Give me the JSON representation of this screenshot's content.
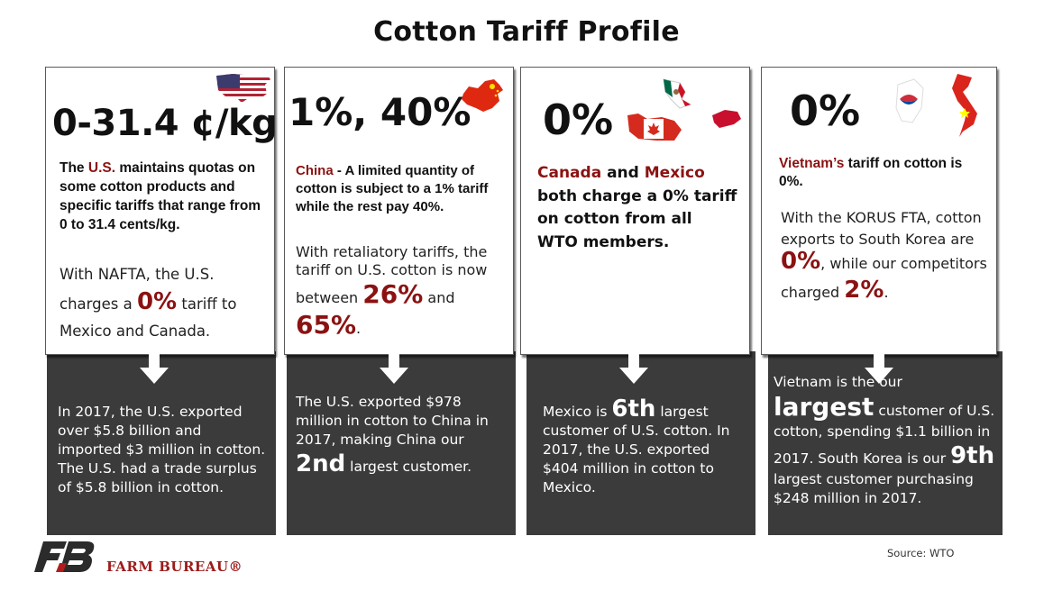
{
  "title": "Cotton Tariff Profile",
  "accent_red": "#8b1212",
  "panel_dark": "#3b3b3b",
  "us": {
    "tariff": "0-31.4 ¢/kg",
    "lead_red": "U.S.",
    "lead_a": "The ",
    "lead_b": " maintains quotas on some cotton products and specific tariffs that range from 0 to 31.4 cents/kg.",
    "nafta_a": "With NAFTA, the U.S. charges a ",
    "nafta_pct": "0%",
    "nafta_b": " tariff to Mexico and Canada.",
    "dark_text": "In 2017, the U.S. exported over $5.8 billion and imported $3 million in cotton. The U.S. had a trade surplus of $5.8 billion in cotton.",
    "flag_icon": "us-flag-map-icon"
  },
  "china": {
    "tariff": "1%, 40%",
    "lead_red": "China",
    "lead_b": " - A limited quantity of cotton is subject to a 1% tariff while the rest pay 40%.",
    "ret_a": "With retaliatory tariffs, the tariff on U.S. cotton is now between ",
    "ret_pct1": "26%",
    "ret_mid": " and ",
    "ret_pct2": "65%",
    "ret_end": ".",
    "dark_a": "The U.S. exported $978 million in cotton to China in 2017, making China our ",
    "dark_big": "2nd",
    "dark_b": " largest customer.",
    "flag_icon": "china-flag-map-icon"
  },
  "canmex": {
    "tariff": "0%",
    "red1": "Canada",
    "mid": " and ",
    "red2": "Mexico",
    "rest": " both charge a 0% tariff on cotton from all WTO members.",
    "dark_a": "Mexico is ",
    "dark_big": "6th",
    "dark_b": " largest customer of U.S. cotton. In 2017, the U.S. exported $404 million in cotton to Mexico.",
    "flag_icon": "canada-mexico-flag-map-icon"
  },
  "vietnam": {
    "tariff": "0%",
    "lead_red": "Vietnam’s",
    "lead_b": " tariff on cotton is 0%.",
    "korus_a": "With the KORUS FTA, cotton exports to South Korea are ",
    "korus_pct": "0%",
    "korus_b": ", while our competitors charged ",
    "korus_pct2": "2%",
    "korus_end": ".",
    "dark_a": "Vietnam is the our ",
    "dark_big1": "largest",
    "dark_b": " customer of U.S. cotton, spending $1.1 billion in 2017. South Korea is our ",
    "dark_big2": "9th",
    "dark_c": " largest customer purchasing $248 million in 2017.",
    "flag_icon": "korea-vietnam-flag-map-icon"
  },
  "logo_text": "FARM BUREAU®",
  "source": "Source: WTO"
}
